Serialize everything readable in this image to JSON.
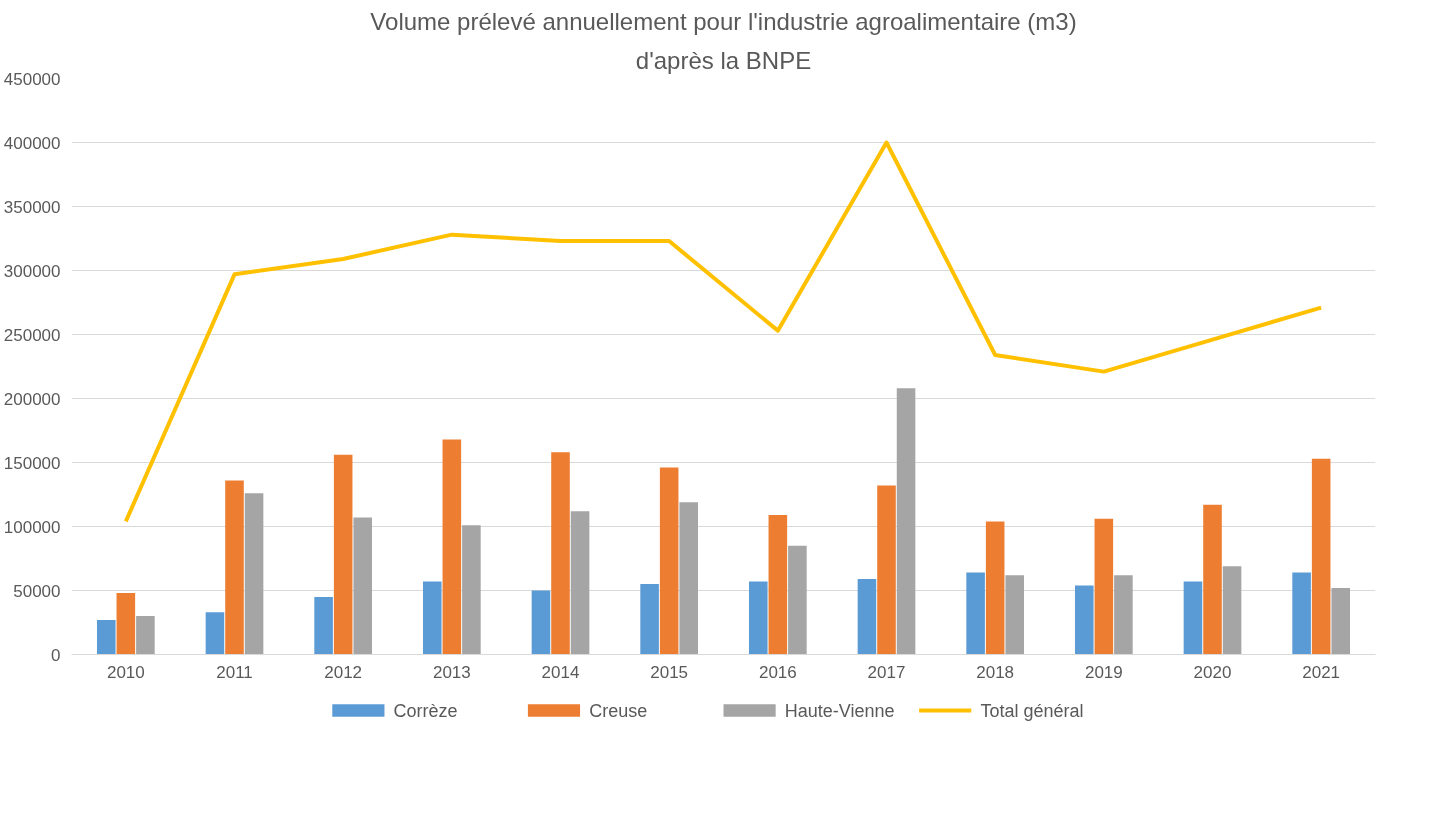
{
  "chart_data": {
    "type": "bar",
    "title": "Volume prélevé annuellement pour l'industrie agroalimentaire (m3)",
    "subtitle": "d'après la BNPE",
    "categories": [
      "2010",
      "2011",
      "2012",
      "2013",
      "2014",
      "2015",
      "2016",
      "2017",
      "2018",
      "2019",
      "2020",
      "2021"
    ],
    "series": [
      {
        "name": "Corrèze",
        "color": "#5b9bd5",
        "values": [
          27000,
          33000,
          45000,
          57000,
          50000,
          55000,
          57000,
          59000,
          64000,
          54000,
          57000,
          64000
        ]
      },
      {
        "name": "Creuse",
        "color": "#ed7d31",
        "values": [
          48000,
          136000,
          156000,
          168000,
          158000,
          146000,
          109000,
          132000,
          104000,
          106000,
          117000,
          153000
        ]
      },
      {
        "name": "Haute-Vienne",
        "color": "#a5a5a5",
        "values": [
          30000,
          126000,
          107000,
          101000,
          112000,
          119000,
          85000,
          208000,
          62000,
          62000,
          69000,
          52000
        ]
      },
      {
        "name": "Total général",
        "color": "#ffc000",
        "type": "line",
        "values": [
          104000,
          297000,
          309000,
          328000,
          323000,
          323000,
          253000,
          400000,
          234000,
          221000,
          246000,
          271000
        ]
      }
    ],
    "ylim": [
      0,
      450000
    ],
    "yticks": [
      0,
      50000,
      100000,
      150000,
      200000,
      250000,
      300000,
      350000,
      400000,
      450000
    ],
    "grid": "y",
    "legend": "bottom",
    "marker": "none",
    "line_style": "solid"
  }
}
